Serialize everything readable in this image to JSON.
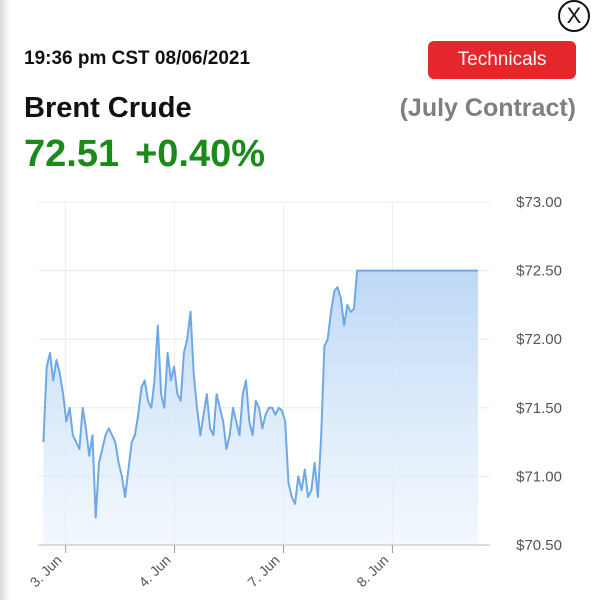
{
  "header": {
    "close_label": "X",
    "timestamp": "19:36 pm CST 08/06/2021",
    "technicals_label": "Technicals",
    "instrument": "Brent Crude",
    "contract": "(July Contract)",
    "price": "72.51",
    "change": "+0.40%"
  },
  "colors": {
    "accent_red": "#e5262b",
    "positive_green": "#1b8a1b",
    "line_blue": "#6ea8e6",
    "fill_blue": "#cfe3f8"
  },
  "chart_data": {
    "type": "area",
    "ylim": [
      70.5,
      73.0
    ],
    "yticks": [
      "$73.00",
      "$72.50",
      "$72.00",
      "$71.50",
      "$71.00",
      "$70.50"
    ],
    "ytick_values": [
      73.0,
      72.5,
      72.0,
      71.5,
      71.0,
      70.5
    ],
    "xlim": [
      0,
      4.15
    ],
    "xticks": [
      "3. Jun",
      "4. Jun",
      "7. Jun",
      "8. Jun"
    ],
    "xtick_values": [
      0.3,
      1.3,
      2.3,
      3.3
    ],
    "grid": true,
    "series": [
      {
        "x": [
          0.05,
          0.08,
          0.11,
          0.14,
          0.17,
          0.2,
          0.23,
          0.26,
          0.29,
          0.32,
          0.35,
          0.38,
          0.41,
          0.44,
          0.47,
          0.5,
          0.53,
          0.56,
          0.59,
          0.62,
          0.65,
          0.68,
          0.71,
          0.74,
          0.77,
          0.8,
          0.83,
          0.86,
          0.89,
          0.92,
          0.95,
          0.98,
          1.01,
          1.04,
          1.07,
          1.1,
          1.13,
          1.16,
          1.19,
          1.22,
          1.25,
          1.28,
          1.31,
          1.34,
          1.37,
          1.4,
          1.43,
          1.46,
          1.49,
          1.52,
          1.55,
          1.58,
          1.61,
          1.64,
          1.67,
          1.7,
          1.73,
          1.76,
          1.79,
          1.82,
          1.85,
          1.88,
          1.91,
          1.94,
          1.97,
          2.0,
          2.03,
          2.06,
          2.09,
          2.12,
          2.15,
          2.18,
          2.21,
          2.24,
          2.27,
          2.3,
          2.33,
          2.36,
          2.39,
          2.42,
          2.45,
          2.48,
          2.51,
          2.54,
          2.57,
          2.6,
          2.63,
          2.66,
          2.69,
          2.72,
          2.75,
          2.78,
          2.81,
          2.84,
          2.87,
          2.9,
          2.93,
          2.96,
          2.99,
          3.02,
          3.05,
          3.08,
          3.11,
          3.14,
          3.17,
          3.2,
          3.23,
          3.26,
          3.29,
          3.32,
          3.35,
          3.38,
          3.41,
          3.44,
          3.47,
          3.5,
          3.53,
          3.56,
          3.59,
          3.62,
          3.65,
          3.68,
          3.71,
          3.74,
          3.77,
          3.8,
          3.83,
          3.86,
          3.89,
          3.92,
          3.95,
          3.98,
          4.01,
          4.04,
          4.07,
          4.1
        ],
        "y": [
          71.25,
          71.8,
          71.9,
          71.7,
          71.85,
          71.75,
          71.6,
          71.4,
          71.5,
          71.3,
          71.25,
          71.2,
          71.5,
          71.35,
          71.15,
          71.3,
          70.7,
          71.1,
          71.2,
          71.3,
          71.35,
          71.3,
          71.25,
          71.1,
          71.0,
          70.85,
          71.05,
          71.25,
          71.3,
          71.45,
          71.65,
          71.7,
          71.55,
          71.5,
          71.7,
          72.1,
          71.6,
          71.5,
          71.9,
          71.7,
          71.8,
          71.6,
          71.55,
          71.9,
          72.0,
          72.2,
          71.75,
          71.5,
          71.3,
          71.45,
          71.6,
          71.35,
          71.3,
          71.6,
          71.5,
          71.4,
          71.2,
          71.3,
          71.5,
          71.4,
          71.3,
          71.6,
          71.7,
          71.4,
          71.3,
          71.55,
          71.5,
          71.35,
          71.45,
          71.5,
          71.5,
          71.45,
          71.5,
          71.48,
          71.4,
          70.95,
          70.85,
          70.8,
          71.0,
          70.9,
          71.05,
          70.85,
          70.9,
          71.1,
          70.85,
          71.3,
          71.95,
          72.0,
          72.2,
          72.35,
          72.38,
          72.3,
          72.1,
          72.25,
          72.2,
          72.22,
          72.5,
          72.5,
          72.5,
          72.5,
          72.5,
          72.5,
          72.5,
          72.5,
          72.5,
          72.5,
          72.5,
          72.5,
          72.5,
          72.5,
          72.5,
          72.5,
          72.5,
          72.5,
          72.5,
          72.5,
          72.5,
          72.5,
          72.5,
          72.5,
          72.5,
          72.5,
          72.5,
          72.5,
          72.5,
          72.5,
          72.5,
          72.5,
          72.5,
          72.5,
          72.5,
          72.5,
          72.5,
          72.5,
          72.5,
          72.5
        ]
      }
    ]
  }
}
